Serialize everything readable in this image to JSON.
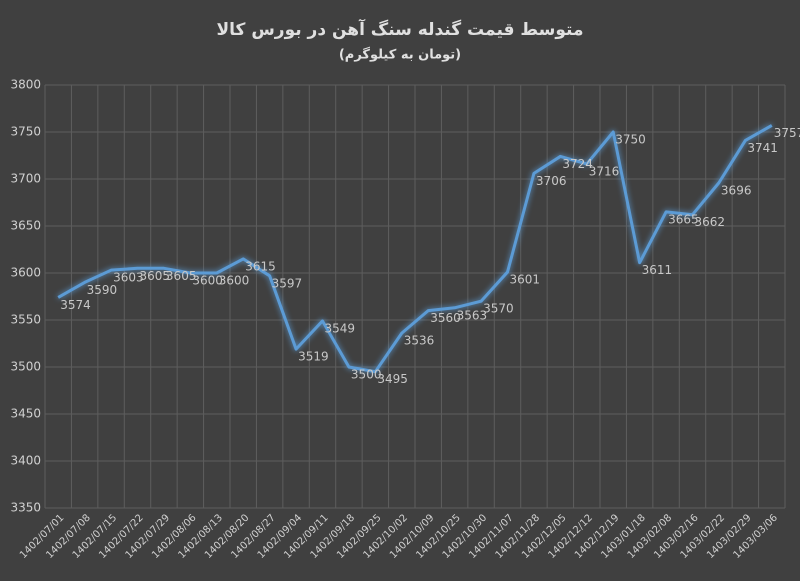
{
  "chart_data": {
    "type": "line",
    "title": "متوسط قیمت گندله سنگ آهن در بورس کالا",
    "subtitle": "(تومان به کیلوگرم)",
    "categories": [
      "1402/07/01",
      "1402/07/08",
      "1402/07/15",
      "1402/07/22",
      "1402/07/29",
      "1402/08/06",
      "1402/08/13",
      "1402/08/20",
      "1402/08/27",
      "1402/09/04",
      "1402/09/11",
      "1402/09/18",
      "1402/09/25",
      "1402/10/02",
      "1402/10/09",
      "1402/10/25",
      "1402/10/30",
      "1402/11/07",
      "1402/11/28",
      "1402/12/05",
      "1402/12/12",
      "1402/12/19",
      "1403/01/18",
      "1403/02/08",
      "1403/02/16",
      "1403/02/22",
      "1403/02/29",
      "1403/03/06"
    ],
    "series": [
      {
        "name": "متوسط قیمت",
        "color": "#5b9bd5",
        "values": [
          3574,
          3590,
          3603,
          3605,
          3605,
          3600,
          3600,
          3615,
          3597,
          3519,
          3549,
          3500,
          3495,
          3536,
          3560,
          3563,
          3570,
          3601,
          3706,
          3724,
          3716,
          3750,
          3611,
          3665,
          3662,
          3696,
          3741,
          3757
        ]
      }
    ],
    "ylim": [
      3350,
      3800
    ],
    "yticks": [
      3350,
      3400,
      3450,
      3500,
      3550,
      3600,
      3650,
      3700,
      3750,
      3800
    ],
    "grid": true
  }
}
